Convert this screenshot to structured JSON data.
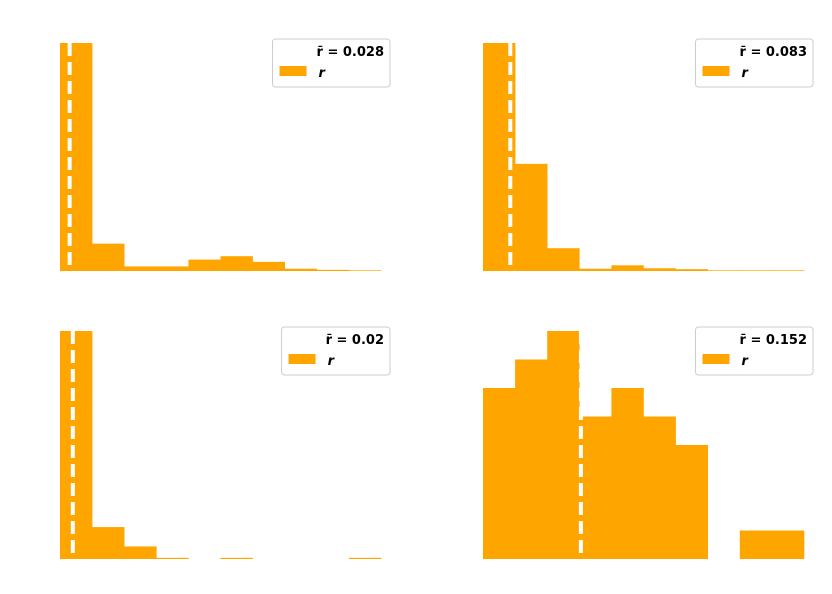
{
  "colors": {
    "bar": "#ffa500",
    "mean_line": "#ffffff",
    "legend_border": "#cccccc"
  },
  "chart_data": [
    {
      "type": "bar",
      "title": "",
      "xlabel": "",
      "ylabel": "",
      "axes_visible": false,
      "grid": false,
      "legend_position": "top-right",
      "legend": {
        "mean_label": "r̄ = 0.028",
        "series_label": "r"
      },
      "bins": 10,
      "values": [
        1.0,
        0.12,
        0.02,
        0.02,
        0.05,
        0.065,
        0.04,
        0.01,
        0.005,
        0.003
      ],
      "mean_marker": 0.3,
      "ylim": [
        0,
        1
      ]
    },
    {
      "type": "bar",
      "title": "",
      "xlabel": "",
      "ylabel": "",
      "axes_visible": false,
      "grid": false,
      "legend_position": "top-right",
      "legend": {
        "mean_label": "r̄ = 0.083",
        "series_label": "r"
      },
      "bins": 10,
      "values": [
        1.0,
        0.47,
        0.1,
        0.01,
        0.025,
        0.012,
        0.008,
        0.003,
        0.003,
        0.003
      ],
      "mean_marker": 0.85,
      "ylim": [
        0,
        1
      ]
    },
    {
      "type": "bar",
      "title": "",
      "xlabel": "",
      "ylabel": "",
      "axes_visible": false,
      "grid": false,
      "legend_position": "top-right",
      "legend": {
        "mean_label": "r̄ = 0.02",
        "series_label": "r"
      },
      "bins": 10,
      "values": [
        1.0,
        0.14,
        0.055,
        0.005,
        0.0,
        0.005,
        0.0,
        0.0,
        0.0,
        0.005
      ],
      "mean_marker": 0.4,
      "ylim": [
        0,
        1
      ]
    },
    {
      "type": "bar",
      "title": "",
      "xlabel": "",
      "ylabel": "",
      "axes_visible": false,
      "grid": false,
      "legend_position": "top-right",
      "legend": {
        "mean_label": "r̄ = 0.152",
        "series_label": "r"
      },
      "bins": 10,
      "values": [
        0.75,
        0.875,
        1.0,
        0.625,
        0.75,
        0.625,
        0.5,
        0.0,
        0.125,
        0.125
      ],
      "mean_marker": 3.05,
      "ylim": [
        0,
        1
      ]
    }
  ]
}
